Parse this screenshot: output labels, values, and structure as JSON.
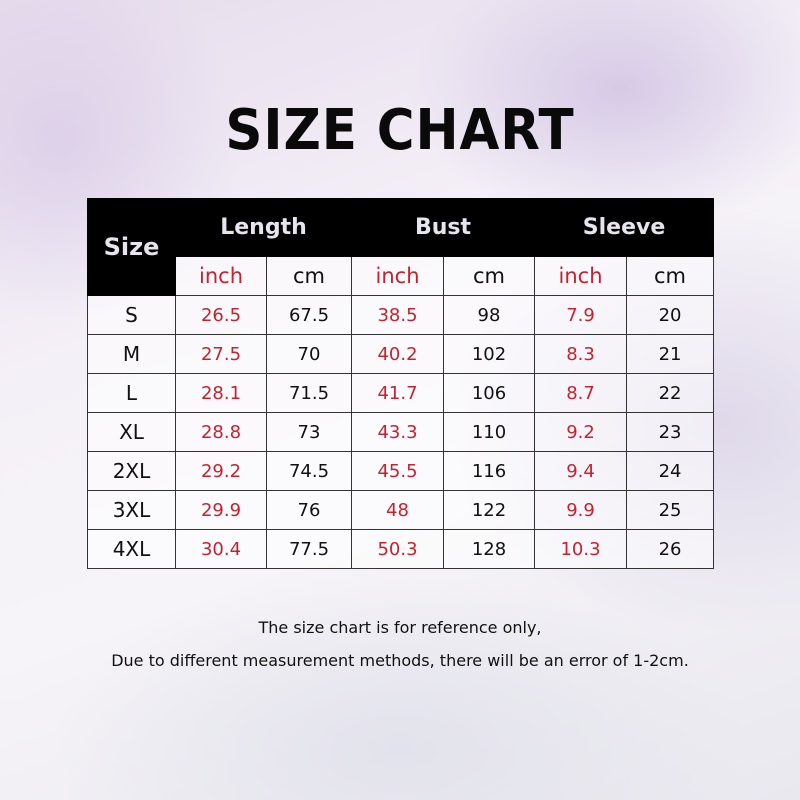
{
  "title": "SIZE CHART",
  "headers": {
    "size": "Size",
    "groups": [
      "Length",
      "Bust",
      "Sleeve"
    ],
    "units": [
      "inch",
      "cm",
      "inch",
      "cm",
      "inch",
      "cm"
    ]
  },
  "rows": [
    [
      "S",
      "26.5",
      "67.5",
      "38.5",
      "98",
      "7.9",
      "20"
    ],
    [
      "M",
      "27.5",
      "70",
      "40.2",
      "102",
      "8.3",
      "21"
    ],
    [
      "L",
      "28.1",
      "71.5",
      "41.7",
      "106",
      "8.7",
      "22"
    ],
    [
      "XL",
      "28.8",
      "73",
      "43.3",
      "110",
      "9.2",
      "23"
    ],
    [
      "2XL",
      "29.2",
      "74.5",
      "45.5",
      "116",
      "9.4",
      "24"
    ],
    [
      "3XL",
      "29.9",
      "76",
      "48",
      "122",
      "9.9",
      "25"
    ],
    [
      "4XL",
      "30.4",
      "77.5",
      "50.3",
      "128",
      "10.3",
      "26"
    ]
  ],
  "notes": [
    "The size chart is for reference only,",
    "Due to different measurement methods, there will be an error of 1-2cm."
  ],
  "colors": {
    "inch_text": "#c8202e",
    "header_bg": "#000000"
  }
}
